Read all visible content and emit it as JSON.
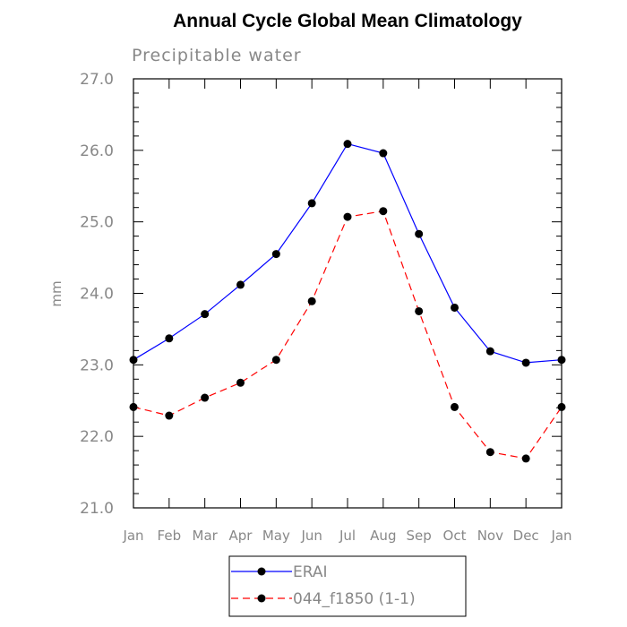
{
  "chart_data": {
    "type": "line",
    "title": "Annual Cycle Global Mean Climatology",
    "subtitle": "Precipitable water",
    "xlabel": "",
    "ylabel": "mm",
    "categories": [
      "Jan",
      "Feb",
      "Mar",
      "Apr",
      "May",
      "Jun",
      "Jul",
      "Aug",
      "Sep",
      "Oct",
      "Nov",
      "Dec",
      "Jan"
    ],
    "ylim": [
      21.0,
      27.0
    ],
    "yticks": [
      21.0,
      22.0,
      23.0,
      24.0,
      25.0,
      26.0,
      27.0
    ],
    "ytick_labels": [
      "21.0",
      "22.0",
      "23.0",
      "24.0",
      "25.0",
      "26.0",
      "27.0"
    ],
    "grid": false,
    "legend_placement": "bottom",
    "series": [
      {
        "name": "ERAI",
        "color": "#0000ff",
        "dash": "solid",
        "values": [
          23.07,
          23.37,
          23.71,
          24.12,
          24.55,
          25.26,
          26.09,
          25.96,
          24.83,
          23.8,
          23.19,
          23.03,
          23.07
        ]
      },
      {
        "name": "044_f1850 (1-1)",
        "color": "#ff0000",
        "dash": "dashed",
        "values": [
          22.41,
          22.29,
          22.54,
          22.75,
          23.07,
          23.89,
          25.07,
          25.15,
          23.75,
          22.41,
          21.78,
          21.69,
          22.41
        ]
      }
    ]
  }
}
